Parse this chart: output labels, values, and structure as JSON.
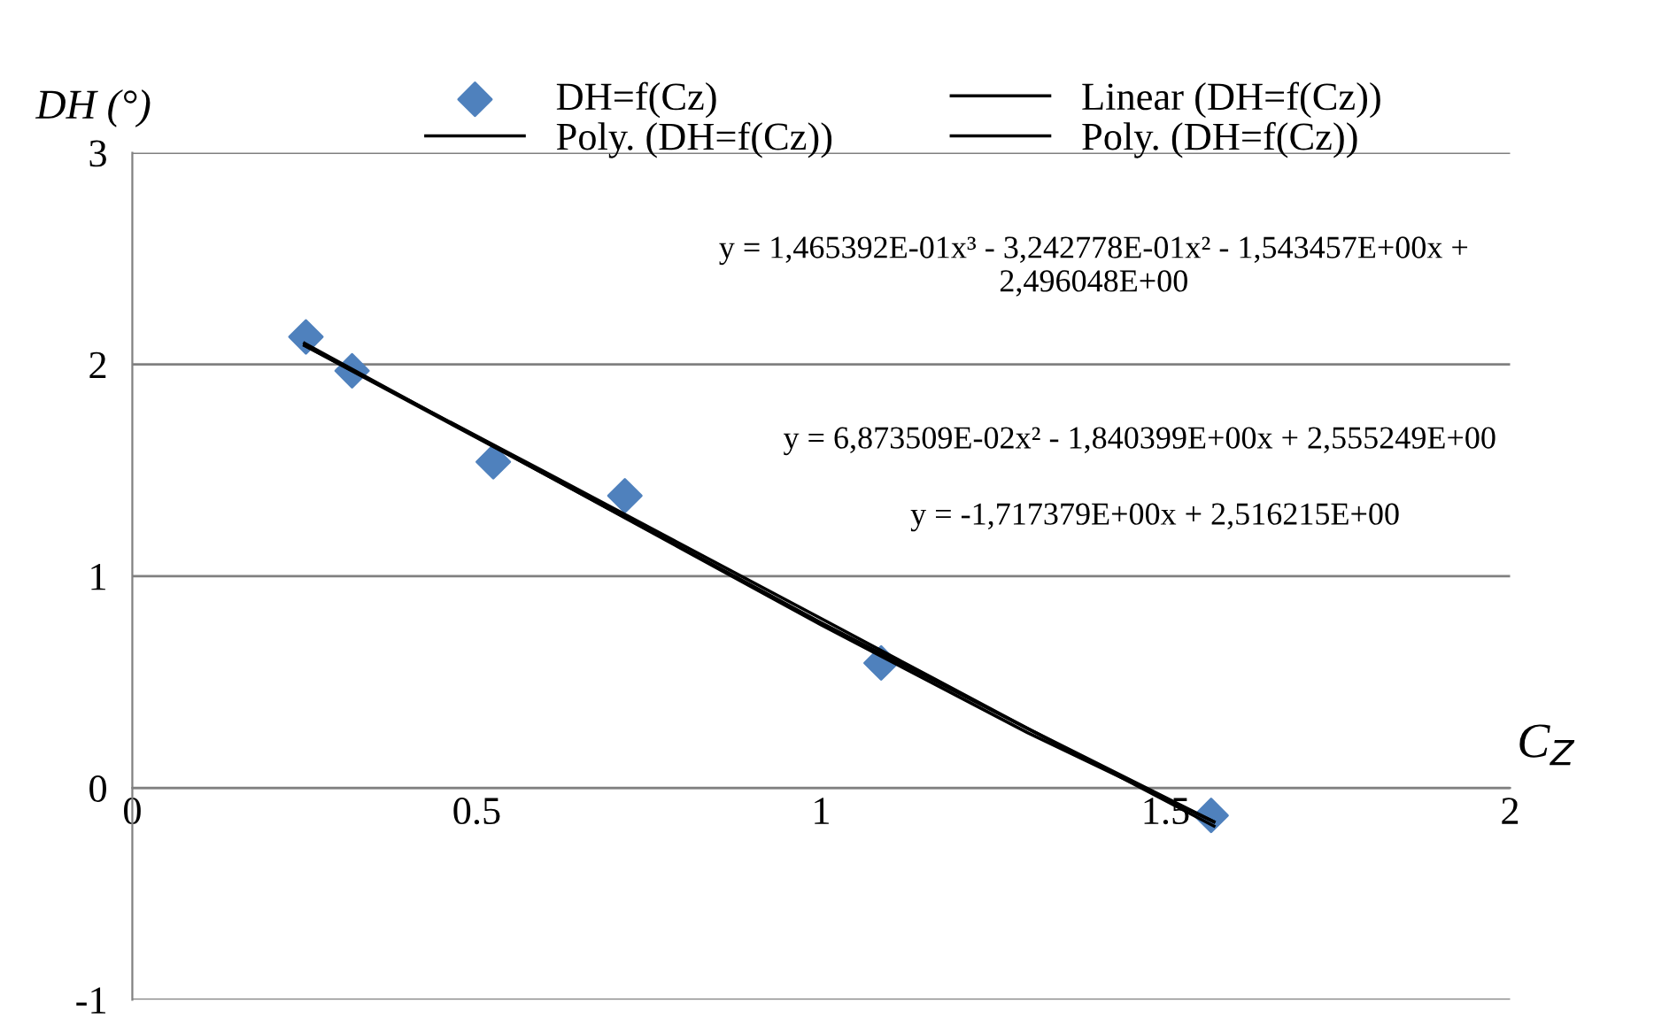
{
  "chart_data": {
    "type": "scatter",
    "ylabel": "DH (°)",
    "xlabel": "C$_{Z}$",
    "xlim": [
      0,
      2
    ],
    "xticks": [
      0,
      0.5,
      1,
      1.5,
      2
    ],
    "ylim": [
      -1,
      3
    ],
    "yticks": [
      -1,
      0,
      1,
      2,
      3
    ],
    "grid": "y",
    "legend": "top",
    "series": [
      {
        "name": "DH=f(Cz)",
        "marker": "diamond",
        "color": "#4f81bd",
        "x": [
          0.252,
          0.319,
          0.524,
          0.715,
          1.087,
          1.566
        ],
        "values": [
          2.13,
          1.97,
          1.54,
          1.38,
          0.59,
          -0.13
        ]
      },
      {
        "name": "Linear (DH=f(Cz))",
        "type": "line",
        "marker": "none",
        "color": "#000000",
        "x": [
          0.25,
          0.6,
          1.0,
          1.3,
          1.57
        ],
        "values": [
          2.09,
          1.49,
          0.8,
          0.28,
          -0.18
        ]
      },
      {
        "name": "Poly. (DH=f(Cz))",
        "type": "line",
        "marker": "none",
        "color": "#000000",
        "x": [
          0.25,
          0.6,
          1.0,
          1.3,
          1.57
        ],
        "values": [
          2.1,
          1.48,
          0.78,
          0.28,
          -0.16
        ]
      },
      {
        "name": "Poly. (DH=f(Cz))",
        "type": "line",
        "marker": "none",
        "color": "#000000",
        "x": [
          0.25,
          0.6,
          1.0,
          1.3,
          1.57
        ],
        "values": [
          2.09,
          1.48,
          0.77,
          0.26,
          -0.16
        ]
      }
    ],
    "annotations": [
      "y = 1,465392E-01x³ - 3,242778E-01x² - 1,543457E+00x +\n2,496048E+00",
      "y = 6,873509E-02x² - 1,840399E+00x + 2,555249E+00",
      "y = -1,717379E+00x + 2,516215E+00"
    ]
  }
}
